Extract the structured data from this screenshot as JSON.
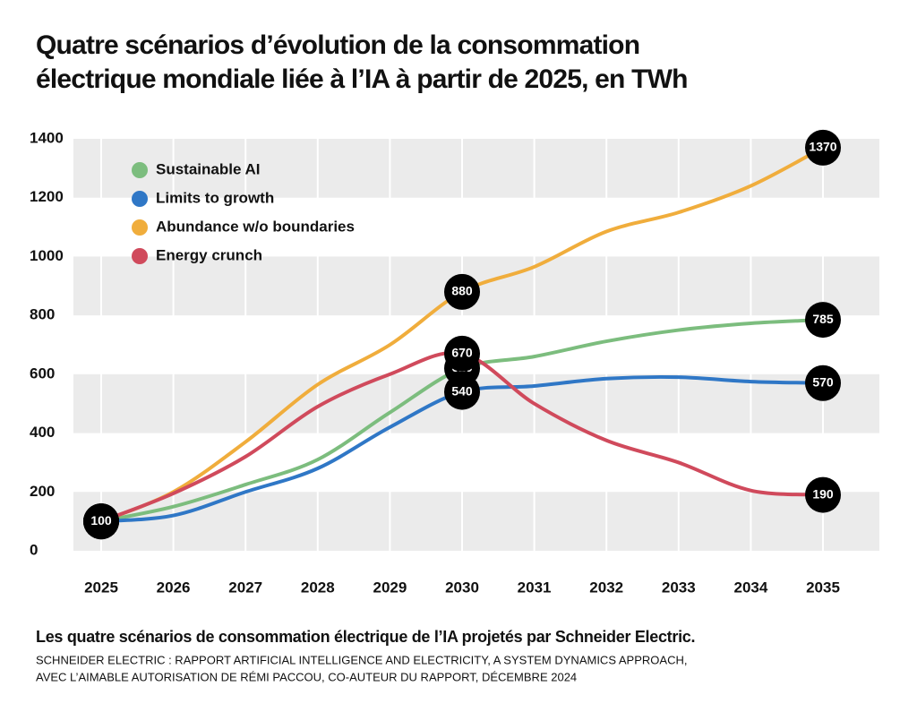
{
  "chart_data": {
    "type": "line",
    "title_lines": [
      "Quatre scénarios d’évolution de la consommation",
      "électrique mondiale liée à l’IA à partir de 2025, en TWh"
    ],
    "subtitle": "Les quatre scénarios de consommation électrique de l’IA projetés par Schneider Electric.",
    "source_lines": [
      "SCHNEIDER ELECTRIC : RAPPORT ARTIFICIAL INTELLIGENCE AND ELECTRICITY, A SYSTEM DYNAMICS APPROACH,",
      "AVEC L’AIMABLE AUTORISATION DE RÉMI PACCOU, CO-AUTEUR DU RAPPORT, DÉCEMBRE 2024"
    ],
    "categories": [
      "2025",
      "2026",
      "2027",
      "2028",
      "2029",
      "2030",
      "2031",
      "2032",
      "2033",
      "2034",
      "2035"
    ],
    "series": [
      {
        "name": "Sustainable AI",
        "color": "#7cbd7e",
        "values": [
          100,
          150,
          225,
          310,
          470,
          620,
          660,
          712,
          750,
          773,
          785
        ]
      },
      {
        "name": "Limits to growth",
        "color": "#2f77c6",
        "values": [
          100,
          120,
          200,
          280,
          420,
          540,
          560,
          585,
          590,
          575,
          570
        ]
      },
      {
        "name": "Abundance w/o boundaries",
        "color": "#f0ad3c",
        "values": [
          100,
          200,
          370,
          565,
          700,
          880,
          965,
          1085,
          1150,
          1240,
          1370
        ]
      },
      {
        "name": "Energy crunch",
        "color": "#d04a5c",
        "values": [
          100,
          195,
          320,
          490,
          600,
          670,
          500,
          375,
          300,
          205,
          190
        ]
      }
    ],
    "labeled_points": [
      0,
      5,
      10
    ],
    "ylim": [
      0,
      1400
    ],
    "yticks": [
      0,
      200,
      400,
      600,
      800,
      1000,
      1200,
      1400
    ],
    "grid": true
  }
}
